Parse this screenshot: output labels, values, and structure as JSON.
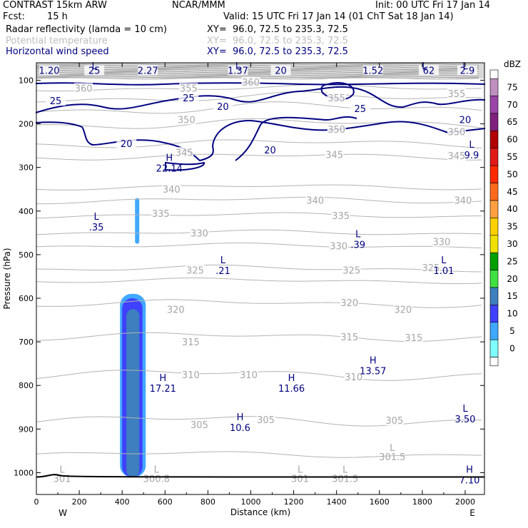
{
  "header": {
    "model": "CONTRAST 15km ARW",
    "center": "NCAR/MMM",
    "init": "Init: 00 UTC Fri 17 Jan 14",
    "fcst_label": "Fcst:",
    "fcst_value": "15 h",
    "valid": "Valid: 15 UTC Fri 17 Jan 14 (01 ChT Sat 18 Jan 14)",
    "fields": [
      {
        "name": "Radar reflectivity (lamda = 10 cm)",
        "xy": "XY=  96.0, 72.5 to 235.3, 72.5"
      },
      {
        "name": "Potential temperature",
        "xy": "XY=  96.0, 72.5 to 235.3, 72.5"
      },
      {
        "name": "Horizontal wind speed",
        "xy": "XY=  96.0, 72.5 to 235.3, 72.5"
      }
    ]
  },
  "colors": {
    "navy": "#000080",
    "theta": "#b4b4b4",
    "ground": "#000000"
  },
  "chart_data": {
    "type": "heatmap",
    "xlabel": "Distance (km)",
    "ylabel": "Pressure (hPa)",
    "xlim": [
      0,
      2090
    ],
    "ylim": [
      1050,
      60
    ],
    "x_ticks": [
      "0",
      "200",
      "400",
      "600",
      "800",
      "1000",
      "1200",
      "1400",
      "1600",
      "1800",
      "2000"
    ],
    "y_ticks": [
      "100",
      "200",
      "300",
      "400",
      "500",
      "600",
      "700",
      "800",
      "900",
      "1000"
    ],
    "x_end_labels": [
      "W",
      "E"
    ],
    "colorbar": {
      "unit": "dBZ",
      "levels": [
        "75",
        "70",
        "65",
        "60",
        "55",
        "50",
        "45",
        "40",
        "35",
        "30",
        "25",
        "20",
        "15",
        "10",
        "5",
        "0"
      ],
      "colors": [
        "#bf8fbf",
        "#9a44a8",
        "#80207e",
        "#b00000",
        "#e01818",
        "#ff2a00",
        "#ff6a1a",
        "#ffa040",
        "#ffd000",
        "#f0e000",
        "#00a000",
        "#40e040",
        "#3d7fbf",
        "#4040ff",
        "#40a8ff",
        "#80ffff"
      ]
    },
    "reflectivity_cells": [
      {
        "x": [
          390,
          510
        ],
        "p": [
          590,
          1010
        ],
        "dbz": 5
      },
      {
        "x": [
          400,
          495
        ],
        "p": [
          600,
          1010
        ],
        "dbz": 10
      },
      {
        "x": [
          420,
          480
        ],
        "p": [
          625,
          1010
        ],
        "dbz": 15
      },
      {
        "x": [
          460,
          480
        ],
        "p": [
          370,
          475
        ],
        "dbz": 5
      }
    ],
    "theta_labels": [
      {
        "text": "360",
        "x": 220,
        "p": 118
      },
      {
        "text": "355",
        "x": 710,
        "p": 118
      },
      {
        "text": "360",
        "x": 1000,
        "p": 104
      },
      {
        "text": "355",
        "x": 1400,
        "p": 140
      },
      {
        "text": "355",
        "x": 1960,
        "p": 130
      },
      {
        "text": "350",
        "x": 700,
        "p": 190
      },
      {
        "text": "350",
        "x": 1400,
        "p": 212
      },
      {
        "text": "350",
        "x": 1960,
        "p": 218
      },
      {
        "text": "345",
        "x": 690,
        "p": 265
      },
      {
        "text": "345",
        "x": 1390,
        "p": 270
      },
      {
        "text": "345",
        "x": 1960,
        "p": 273
      },
      {
        "text": "340",
        "x": 630,
        "p": 350
      },
      {
        "text": "340",
        "x": 1300,
        "p": 375
      },
      {
        "text": "340",
        "x": 1990,
        "p": 375
      },
      {
        "text": "335",
        "x": 580,
        "p": 405
      },
      {
        "text": "335",
        "x": 1420,
        "p": 410
      },
      {
        "text": "330",
        "x": 760,
        "p": 450
      },
      {
        "text": "330",
        "x": 1410,
        "p": 480
      },
      {
        "text": "330",
        "x": 1890,
        "p": 470
      },
      {
        "text": "325",
        "x": 740,
        "p": 535
      },
      {
        "text": "325",
        "x": 1470,
        "p": 535
      },
      {
        "text": "325",
        "x": 1840,
        "p": 530
      },
      {
        "text": "320",
        "x": 650,
        "p": 625
      },
      {
        "text": "320",
        "x": 1460,
        "p": 610
      },
      {
        "text": "320",
        "x": 1710,
        "p": 625
      },
      {
        "text": "315",
        "x": 720,
        "p": 700
      },
      {
        "text": "315",
        "x": 1460,
        "p": 688
      },
      {
        "text": "315",
        "x": 1760,
        "p": 690
      },
      {
        "text": "310",
        "x": 720,
        "p": 775
      },
      {
        "text": "310",
        "x": 990,
        "p": 775
      },
      {
        "text": "310",
        "x": 1480,
        "p": 780
      },
      {
        "text": "305",
        "x": 760,
        "p": 890
      },
      {
        "text": "305",
        "x": 1070,
        "p": 878
      },
      {
        "text": "305",
        "x": 1670,
        "p": 880
      }
    ],
    "wind_labels": [
      {
        "text": "1.20",
        "x": 60,
        "p": 77
      },
      {
        "text": "25",
        "x": 270,
        "p": 77
      },
      {
        "text": "2.27",
        "x": 520,
        "p": 77
      },
      {
        "text": "1.37",
        "x": 940,
        "p": 77
      },
      {
        "text": "20",
        "x": 1140,
        "p": 77
      },
      {
        "text": "1.52",
        "x": 1570,
        "p": 77
      },
      {
        "text": "62",
        "x": 1830,
        "p": 77
      },
      {
        "text": "2.9",
        "x": 2010,
        "p": 77
      },
      {
        "text": "25",
        "x": 90,
        "p": 147
      },
      {
        "text": "25",
        "x": 710,
        "p": 140
      },
      {
        "text": "20",
        "x": 870,
        "p": 160
      },
      {
        "text": "25",
        "x": 1510,
        "p": 165
      },
      {
        "text": "20",
        "x": 420,
        "p": 245
      },
      {
        "text": "20",
        "x": 1090,
        "p": 260
      },
      {
        "text": "20",
        "x": 2000,
        "p": 190
      }
    ],
    "extrema": [
      {
        "kind": "L",
        "x": 270,
        "p": 75,
        "value": ""
      },
      {
        "kind": "L",
        "x": 940,
        "p": 75,
        "value": ""
      },
      {
        "kind": "L",
        "x": 1810,
        "p": 75,
        "value": ""
      },
      {
        "kind": "L",
        "x": 2000,
        "p": 75,
        "value": ""
      },
      {
        "kind": "H",
        "x": 620,
        "p": 285,
        "value": "22.14"
      },
      {
        "kind": "L",
        "x": 2030,
        "p": 255,
        "value": "9.9"
      },
      {
        "kind": "L",
        "x": 280,
        "p": 420,
        "value": ".35"
      },
      {
        "kind": "L",
        "x": 870,
        "p": 520,
        "value": ".21"
      },
      {
        "kind": "L",
        "x": 1500,
        "p": 460,
        "value": ".39"
      },
      {
        "kind": "L",
        "x": 1900,
        "p": 520,
        "value": "1.01"
      },
      {
        "kind": "H",
        "x": 590,
        "p": 790,
        "value": "17.21"
      },
      {
        "kind": "H",
        "x": 1190,
        "p": 790,
        "value": "11.66"
      },
      {
        "kind": "H",
        "x": 1570,
        "p": 750,
        "value": "13.57"
      },
      {
        "kind": "H",
        "x": 950,
        "p": 880,
        "value": "10.6"
      },
      {
        "kind": "L",
        "x": 2000,
        "p": 860,
        "value": "3.50"
      },
      {
        "kind": "H",
        "x": 2020,
        "p": 1000,
        "value": "7.10"
      }
    ],
    "surface_labels": [
      {
        "kind": "L",
        "x": 120,
        "p": 1000,
        "value": "301"
      },
      {
        "kind": "L",
        "x": 560,
        "p": 1000,
        "value": "300.8"
      },
      {
        "kind": "L",
        "x": 1230,
        "p": 1000,
        "value": "301"
      },
      {
        "kind": "L",
        "x": 1440,
        "p": 1000,
        "value": "301.5"
      },
      {
        "kind": "L",
        "x": 1660,
        "p": 950,
        "value": "301.5"
      }
    ]
  }
}
